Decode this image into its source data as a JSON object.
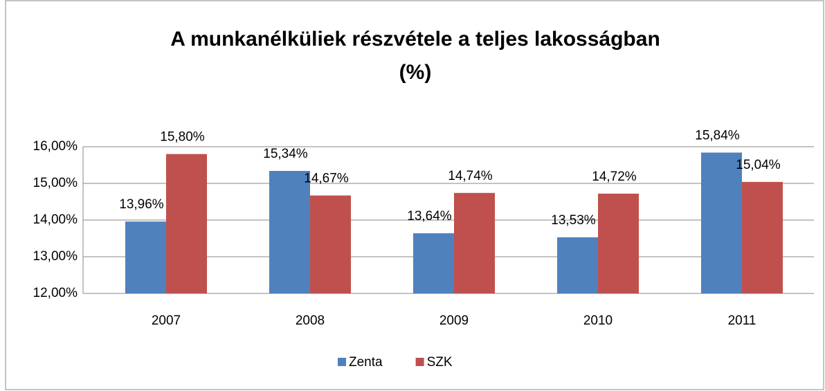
{
  "chart_data": {
    "type": "bar",
    "title": [
      "A munkanélküliek részvétele  a teljes lakosságban",
      "(%)"
    ],
    "categories": [
      "2007",
      "2008",
      "2009",
      "2010",
      "2011"
    ],
    "series": [
      {
        "name": "Zenta",
        "color": "#4f81bd",
        "values": [
          13.96,
          15.34,
          13.64,
          13.53,
          15.84
        ],
        "value_labels": [
          "13,96%",
          "15,34%",
          "13,64%",
          "13,53%",
          "15,84%"
        ]
      },
      {
        "name": "SZK",
        "color": "#c0504d",
        "values": [
          15.8,
          14.67,
          14.74,
          14.72,
          15.04
        ],
        "value_labels": [
          "15,80%",
          "14,67%",
          "14,74%",
          "14,72%",
          "15,04%"
        ]
      }
    ],
    "ylim": [
      12,
      16
    ],
    "yticks": [
      {
        "value": 12,
        "label": "12,00%"
      },
      {
        "value": 13,
        "label": "13,00%"
      },
      {
        "value": 14,
        "label": "14,00%"
      },
      {
        "value": 15,
        "label": "15,00%"
      },
      {
        "value": 16,
        "label": "16,00%"
      }
    ],
    "grid": true,
    "legend": "bottom"
  }
}
